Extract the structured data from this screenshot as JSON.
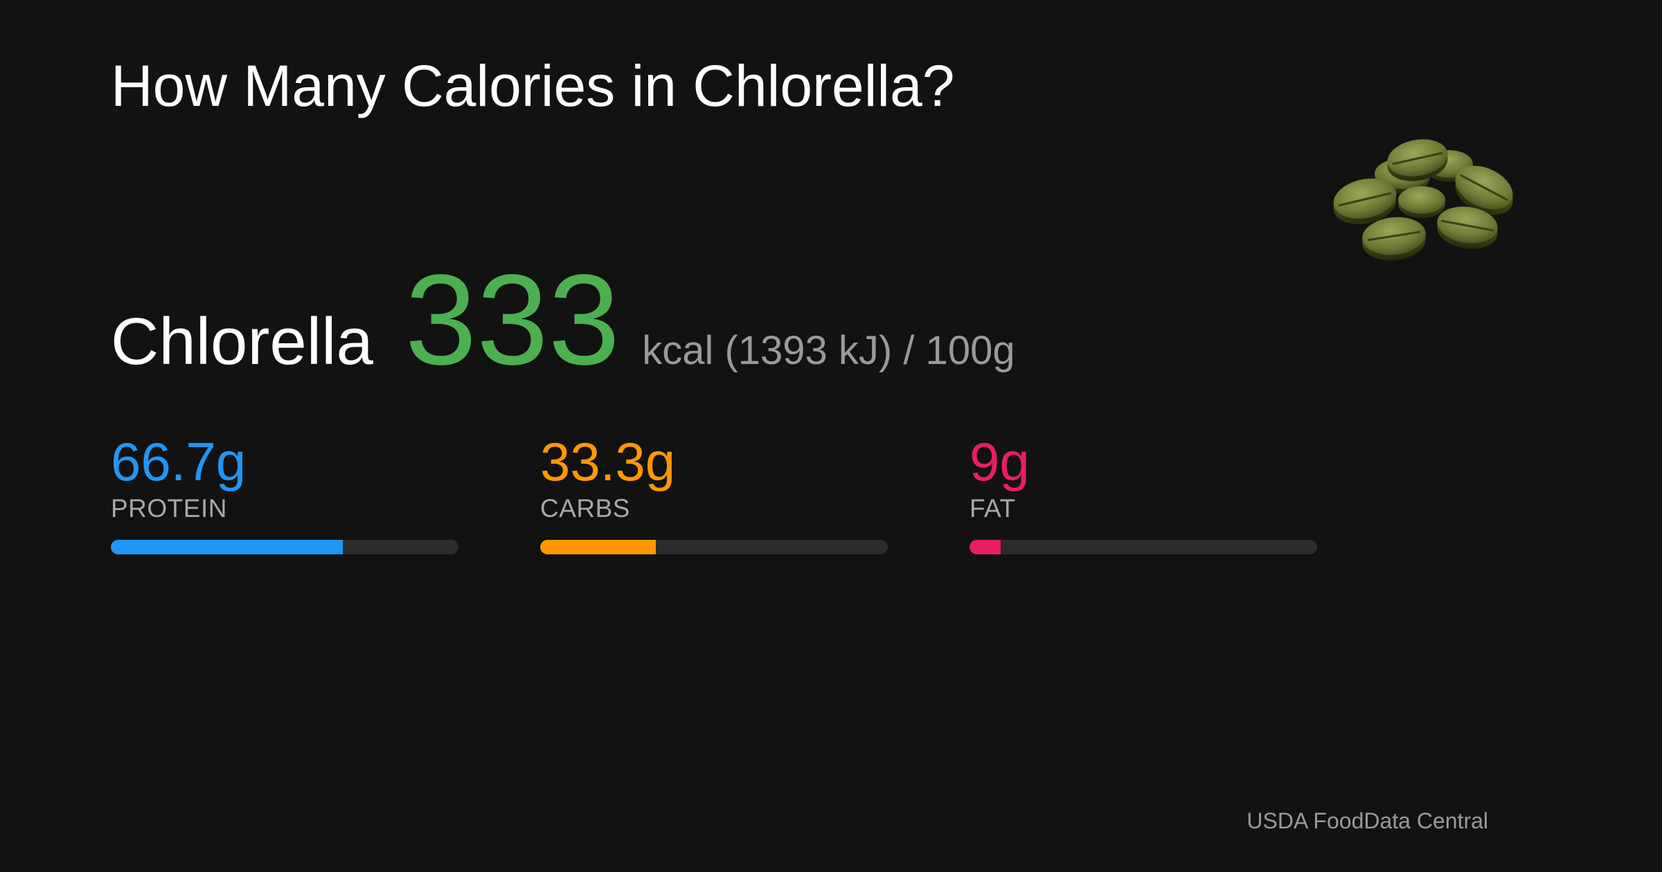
{
  "title": "How Many Calories in Chlorella?",
  "food": {
    "name": "Chlorella",
    "image_icon": "chlorella-tablets-icon"
  },
  "calories": {
    "kcal": "333",
    "unit_text": "kcal (1393 kJ) / 100g"
  },
  "macros": [
    {
      "value": "66.7g",
      "label": "PROTEIN",
      "fraction": 0.667,
      "color": "#2196f3"
    },
    {
      "value": "33.3g",
      "label": "CARBS",
      "fraction": 0.333,
      "color": "#ff9800"
    },
    {
      "value": "9g",
      "label": "FAT",
      "fraction": 0.09,
      "color": "#e91e63"
    }
  ],
  "colors": {
    "background": "#121212",
    "calorie_accent": "#4caf50",
    "bar_track": "#2c2c2c"
  },
  "source": "USDA FoodData Central"
}
